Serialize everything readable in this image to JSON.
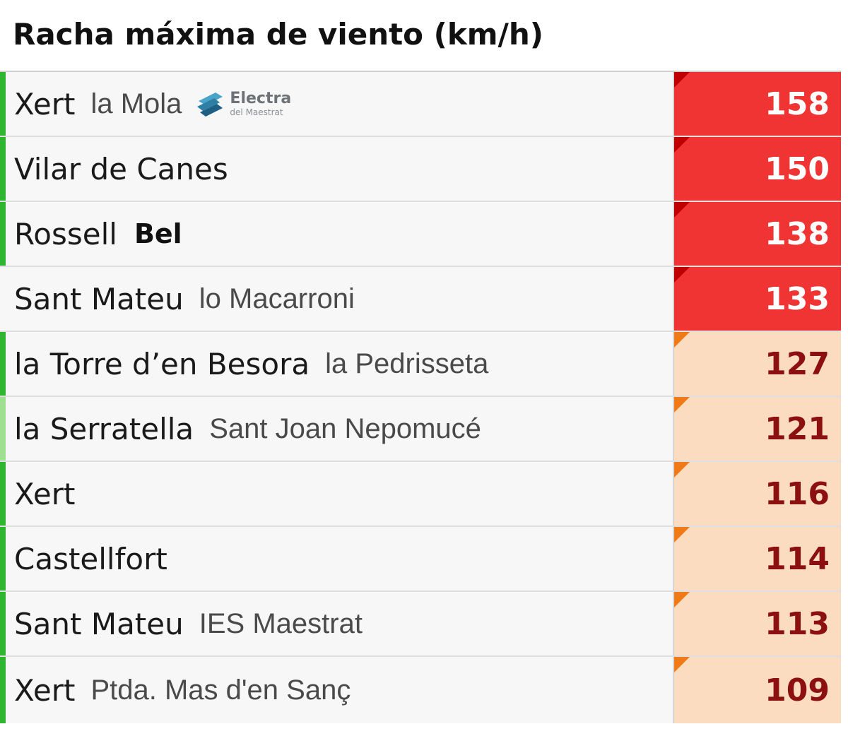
{
  "title": "Racha máxima de viento (km/h)",
  "colors": {
    "severe_bg": "#f03333",
    "severe_text": "#ffffff",
    "severe_corner": "#c00000",
    "high_bg": "#fbdcc0",
    "high_text": "#8c1010",
    "high_corner": "#f07a16",
    "accent_green": "#2fb52f",
    "accent_light_green": "#9ee08f"
  },
  "logo": {
    "main": "Electra",
    "sub": "del Maestrat",
    "icon": "electra-logo-icon"
  },
  "rows": [
    {
      "place": "Xert",
      "sub": "la Mola",
      "value": "158",
      "level": "severe",
      "accent": "green",
      "logo": true
    },
    {
      "place": "Vilar de Canes",
      "sub": "",
      "value": "150",
      "level": "severe",
      "accent": "green"
    },
    {
      "place": "Rossell",
      "sub": "Bel",
      "value": "138",
      "level": "severe",
      "accent": "green",
      "sub_bold": true
    },
    {
      "place": "Sant Mateu",
      "sub": "lo Macarroni",
      "value": "133",
      "level": "severe",
      "accent": "none"
    },
    {
      "place": "la Torre d’en Besora",
      "sub": "la Pedrisseta",
      "value": "127",
      "level": "high",
      "accent": "green"
    },
    {
      "place": "la Serratella",
      "sub": "Sant Joan Nepomucé",
      "value": "121",
      "level": "high",
      "accent": "light_green"
    },
    {
      "place": "Xert",
      "sub": "",
      "value": "116",
      "level": "high",
      "accent": "green"
    },
    {
      "place": "Castellfort",
      "sub": "",
      "value": "114",
      "level": "high",
      "accent": "green"
    },
    {
      "place": "Sant Mateu",
      "sub": "IES Maestrat",
      "value": "113",
      "level": "high",
      "accent": "green"
    },
    {
      "place": "Xert",
      "sub": "Ptda. Mas d'en Sanç",
      "value": "109",
      "level": "high",
      "accent": "green"
    }
  ]
}
